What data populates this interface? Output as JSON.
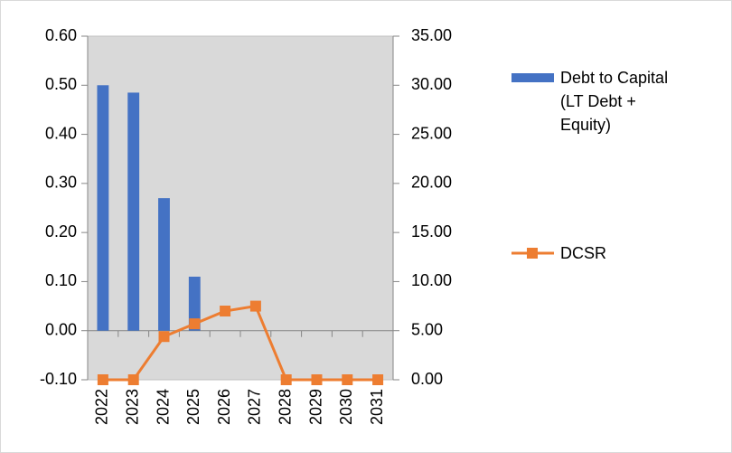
{
  "chart_data": {
    "type": "combo",
    "categories": [
      "2022",
      "2023",
      "2024",
      "2025",
      "2026",
      "2027",
      "2028",
      "2029",
      "2030",
      "2031"
    ],
    "series": [
      {
        "name": "Debt to Capital (LT Debt + Equity)",
        "type": "bar",
        "color": "#4472c4",
        "values": [
          0.5,
          0.485,
          0.27,
          0.11,
          0,
          0,
          0,
          0,
          0,
          0
        ]
      },
      {
        "name": "DCSR",
        "type": "line",
        "axis": "y2",
        "color": "#ed7d31",
        "values": [
          0,
          0,
          4.4,
          5.7,
          7.0,
          7.5,
          0,
          0,
          0,
          0
        ]
      }
    ],
    "ylim": [
      -0.1,
      0.6
    ],
    "yticks": [
      {
        "value": -0.1,
        "label": "-0.10"
      },
      {
        "value": 0,
        "label": "0.00"
      },
      {
        "value": 0.1,
        "label": "0.10"
      },
      {
        "value": 0.2,
        "label": "0.20"
      },
      {
        "value": 0.3,
        "label": "0.30"
      },
      {
        "value": 0.4,
        "label": "0.40"
      },
      {
        "value": 0.5,
        "label": "0.50"
      },
      {
        "value": 0.6,
        "label": "0.60"
      }
    ],
    "y2lim": [
      0,
      35
    ],
    "y2ticks": [
      {
        "value": 0,
        "label": "0.00"
      },
      {
        "value": 5,
        "label": "5.00"
      },
      {
        "value": 10,
        "label": "10.00"
      },
      {
        "value": 15,
        "label": "15.00"
      },
      {
        "value": 20,
        "label": "20.00"
      },
      {
        "value": 25,
        "label": "25.00"
      },
      {
        "value": 30,
        "label": "30.00"
      },
      {
        "value": 35,
        "label": "35.00"
      }
    ],
    "grid": false,
    "legend": "right"
  }
}
